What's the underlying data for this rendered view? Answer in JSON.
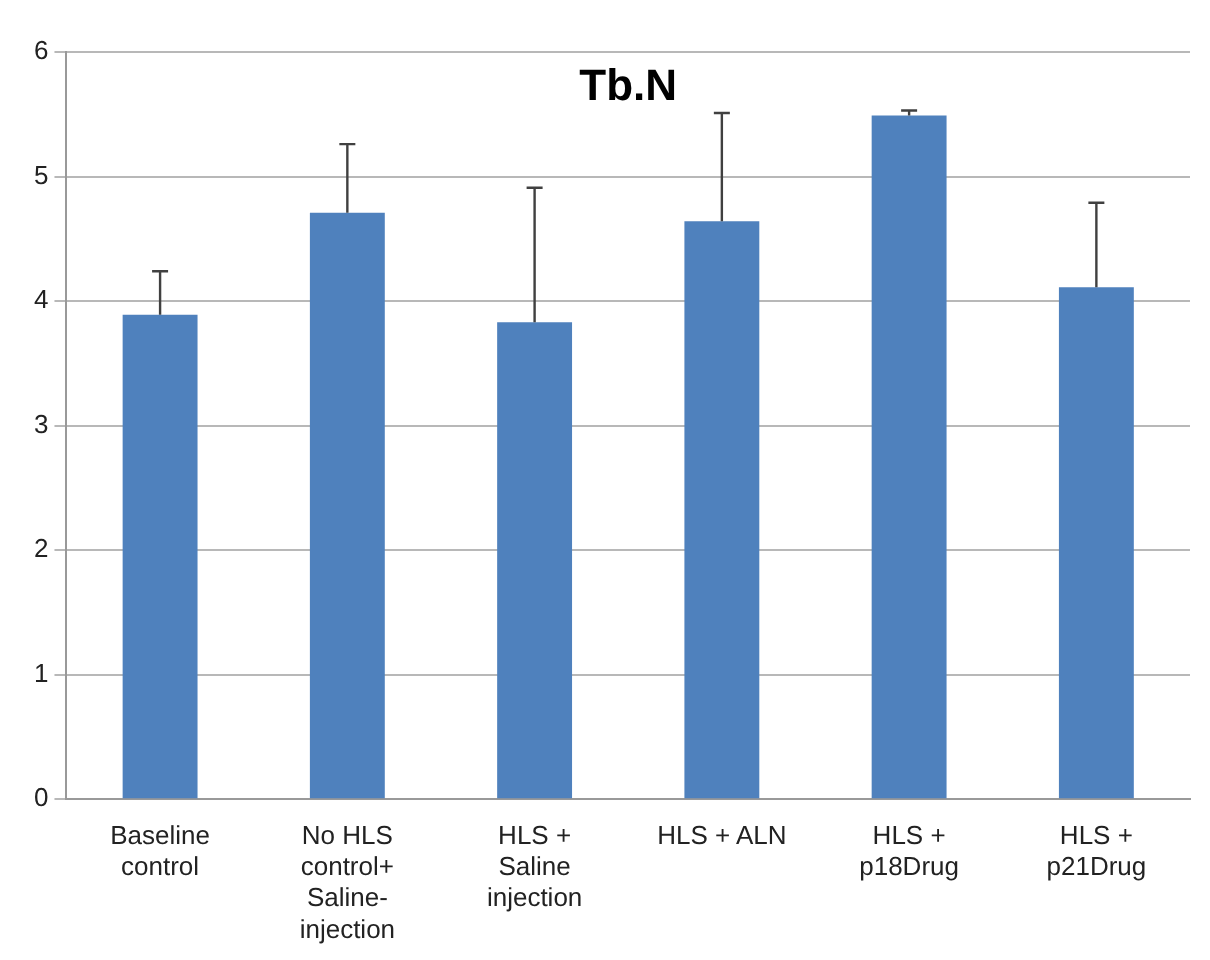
{
  "chart_data": {
    "type": "bar",
    "title": "Tb.N",
    "categories": [
      "Baseline control",
      "No HLS control+ Saline-injection",
      "HLS + Saline injection",
      "HLS + ALN",
      "HLS + p18Drug",
      "HLS + p21Drug"
    ],
    "values": [
      3.89,
      4.71,
      3.83,
      4.64,
      5.49,
      4.11
    ],
    "errors": [
      [
        3.89,
        4.24
      ],
      [
        4.71,
        5.26
      ],
      [
        3.83,
        4.91
      ],
      [
        4.64,
        5.51
      ],
      [
        5.49,
        5.53
      ],
      [
        4.11,
        4.79
      ]
    ],
    "color": "#4f81bd",
    "ylim": [
      0,
      6
    ],
    "yticks": [
      0,
      1,
      2,
      3,
      4,
      5,
      6
    ],
    "grid": "y",
    "legend": false
  }
}
